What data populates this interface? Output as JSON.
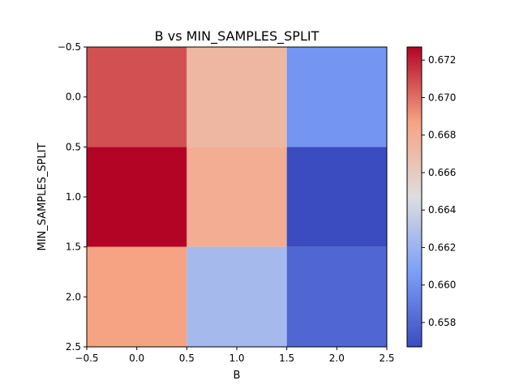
{
  "chart_data": {
    "type": "heatmap",
    "title": "B vs MIN_SAMPLES_SPLIT",
    "xlabel": "B",
    "ylabel": "MIN_SAMPLES_SPLIT",
    "xlim": [
      -0.5,
      2.5
    ],
    "ylim": [
      -0.5,
      2.5
    ],
    "y_inverted": true,
    "xticks": [
      "−0.5",
      "0.0",
      "0.5",
      "1.0",
      "1.5",
      "2.0",
      "2.5"
    ],
    "yticks": [
      "−0.5",
      "0.0",
      "0.5",
      "1.0",
      "1.5",
      "2.0",
      "2.5"
    ],
    "xtick_values": [
      -0.5,
      0.0,
      0.5,
      1.0,
      1.5,
      2.0,
      2.5
    ],
    "ytick_values": [
      -0.5,
      0.0,
      0.5,
      1.0,
      1.5,
      2.0,
      2.5
    ],
    "values": [
      [
        0.6708,
        0.6673,
        0.6602
      ],
      [
        0.6727,
        0.668,
        0.6567
      ],
      [
        0.6687,
        0.6624,
        0.658
      ]
    ],
    "colormap": "coolwarm",
    "colorbar": {
      "min": 0.6567,
      "max": 0.6727,
      "ticks": [
        "0.658",
        "0.660",
        "0.662",
        "0.664",
        "0.666",
        "0.668",
        "0.670",
        "0.672"
      ],
      "tick_values": [
        0.658,
        0.66,
        0.662,
        0.664,
        0.666,
        0.668,
        0.67,
        0.672
      ]
    },
    "grid": false
  }
}
